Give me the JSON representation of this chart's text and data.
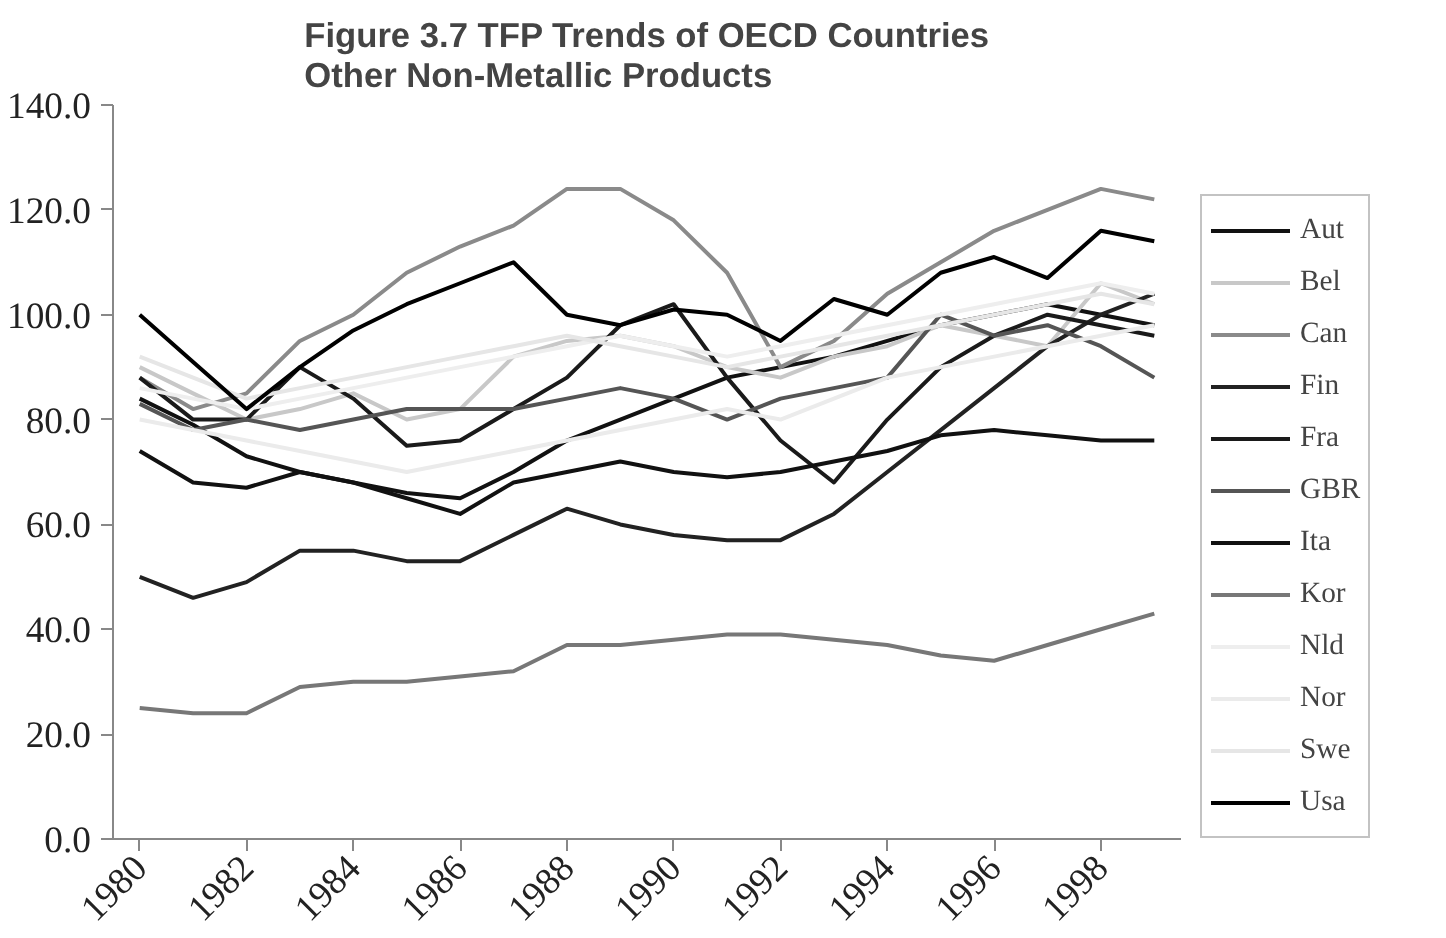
{
  "chart_data": {
    "type": "line",
    "title": "Figure 3.7 TFP Trends of OECD Countries\nOther Non-Metallic Products",
    "x": [
      1980,
      1981,
      1982,
      1983,
      1984,
      1985,
      1986,
      1987,
      1988,
      1989,
      1990,
      1991,
      1992,
      1993,
      1994,
      1995,
      1996,
      1997,
      1998,
      1999
    ],
    "series": [
      {
        "name": "Aut",
        "color": "#111111",
        "values": [
          84,
          79,
          73,
          70,
          68,
          66,
          65,
          70,
          76,
          80,
          84,
          88,
          90,
          92,
          95,
          98,
          100,
          102,
          100,
          98
        ]
      },
      {
        "name": "Bel",
        "color": "#c8c8c8",
        "values": [
          90,
          85,
          80,
          82,
          85,
          80,
          82,
          92,
          95,
          96,
          94,
          90,
          88,
          92,
          94,
          98,
          96,
          94,
          106,
          102
        ]
      },
      {
        "name": "Can",
        "color": "#8a8a8a",
        "values": [
          88,
          82,
          85,
          95,
          100,
          108,
          113,
          117,
          124,
          124,
          118,
          108,
          90,
          95,
          104,
          110,
          116,
          120,
          124,
          122
        ]
      },
      {
        "name": "Fin",
        "color": "#222222",
        "values": [
          50,
          46,
          49,
          55,
          55,
          53,
          53,
          58,
          63,
          60,
          58,
          57,
          57,
          62,
          70,
          78,
          86,
          94,
          100,
          104
        ]
      },
      {
        "name": "Fra",
        "color": "#1a1a1a",
        "values": [
          88,
          80,
          80,
          90,
          84,
          75,
          76,
          82,
          88,
          98,
          102,
          88,
          76,
          68,
          80,
          90,
          96,
          100,
          98,
          96
        ]
      },
      {
        "name": "GBR",
        "color": "#555555",
        "values": [
          83,
          78,
          80,
          78,
          80,
          82,
          82,
          82,
          84,
          86,
          84,
          80,
          84,
          86,
          88,
          100,
          96,
          98,
          94,
          88
        ]
      },
      {
        "name": "Ita",
        "color": "#111111",
        "values": [
          74,
          68,
          67,
          70,
          68,
          65,
          62,
          68,
          70,
          72,
          70,
          69,
          70,
          72,
          74,
          77,
          78,
          77,
          76,
          76
        ]
      },
      {
        "name": "Kor",
        "color": "#777777",
        "values": [
          25,
          24,
          24,
          29,
          30,
          30,
          31,
          32,
          37,
          37,
          38,
          39,
          39,
          38,
          37,
          35,
          34,
          37,
          40,
          43
        ]
      },
      {
        "name": "Nld",
        "color": "#eeeeee",
        "values": [
          86,
          84,
          82,
          84,
          86,
          88,
          90,
          92,
          94,
          96,
          94,
          92,
          94,
          96,
          98,
          100,
          102,
          104,
          106,
          104
        ]
      },
      {
        "name": "Nor",
        "color": "#ebebeb",
        "values": [
          80,
          78,
          76,
          74,
          72,
          70,
          72,
          74,
          76,
          78,
          80,
          82,
          80,
          84,
          88,
          90,
          92,
          94,
          96,
          98
        ]
      },
      {
        "name": "Swe",
        "color": "#e6e6e6",
        "values": [
          92,
          88,
          84,
          86,
          88,
          90,
          92,
          94,
          96,
          94,
          92,
          90,
          92,
          94,
          96,
          98,
          100,
          102,
          104,
          102
        ]
      },
      {
        "name": "Usa",
        "color": "#000000",
        "values": [
          100,
          91,
          82,
          90,
          97,
          102,
          106,
          110,
          100,
          98,
          101,
          100,
          95,
          103,
          100,
          108,
          111,
          107,
          116,
          114
        ]
      }
    ],
    "xlim": [
      1979.5,
      1999.5
    ],
    "xticks": [
      1980,
      1982,
      1984,
      1986,
      1988,
      1990,
      1992,
      1994,
      1996,
      1998
    ],
    "ylim": [
      0,
      140
    ],
    "yticks": [
      {
        "value": 0,
        "label": "0.0"
      },
      {
        "value": 20,
        "label": "20.0"
      },
      {
        "value": 40,
        "label": "40.0"
      },
      {
        "value": 60,
        "label": "60.0"
      },
      {
        "value": 80,
        "label": "80.0"
      },
      {
        "value": 100,
        "label": "100.0"
      },
      {
        "value": 120,
        "label": "120.0"
      },
      {
        "value": 140,
        "label": "140.0"
      }
    ],
    "grid": false,
    "legend": "right",
    "marker": "none",
    "line_style": "solid"
  }
}
